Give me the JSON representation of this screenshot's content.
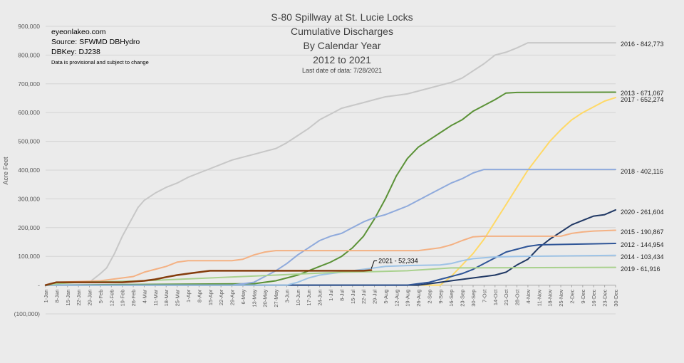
{
  "source_block": {
    "site": "eyeonlakeo.com",
    "source": "Source: SFWMD DBHydro",
    "dbkey": "DBKey: DJ238",
    "note": "Data is provisional and subject to change"
  },
  "chart_data": {
    "type": "line",
    "title": [
      "S-80 Spillway at St. Lucie Locks",
      "Cumulative Discharges",
      "By Calendar Year",
      "2012 to 2021"
    ],
    "subtitle": "Last date of data: 7/28/2021",
    "ylabel": "Acre Feet",
    "xlabel": "",
    "ylim": [
      -100000,
      900000
    ],
    "yticks": [
      {
        "v": -100000,
        "label": "(100,000)"
      },
      {
        "v": 0,
        "label": "-"
      },
      {
        "v": 100000,
        "label": "100,000"
      },
      {
        "v": 200000,
        "label": "200,000"
      },
      {
        "v": 300000,
        "label": "300,000"
      },
      {
        "v": 400000,
        "label": "400,000"
      },
      {
        "v": 500000,
        "label": "500,000"
      },
      {
        "v": 600000,
        "label": "600,000"
      },
      {
        "v": 700000,
        "label": "700,000"
      },
      {
        "v": 800000,
        "label": "800,000"
      },
      {
        "v": 900000,
        "label": "900,000"
      }
    ],
    "xlim": [
      1,
      365
    ],
    "xticks": [
      {
        "day": 1,
        "label": "1-Jan"
      },
      {
        "day": 8,
        "label": "8-Jan"
      },
      {
        "day": 15,
        "label": "15-Jan"
      },
      {
        "day": 22,
        "label": "22-Jan"
      },
      {
        "day": 29,
        "label": "29-Jan"
      },
      {
        "day": 36,
        "label": "5-Feb"
      },
      {
        "day": 43,
        "label": "12-Feb"
      },
      {
        "day": 50,
        "label": "19-Feb"
      },
      {
        "day": 57,
        "label": "26-Feb"
      },
      {
        "day": 64,
        "label": "4-Mar"
      },
      {
        "day": 71,
        "label": "11-Mar"
      },
      {
        "day": 78,
        "label": "18-Mar"
      },
      {
        "day": 85,
        "label": "25-Mar"
      },
      {
        "day": 92,
        "label": "1-Apr"
      },
      {
        "day": 99,
        "label": "8-Apr"
      },
      {
        "day": 106,
        "label": "15-Apr"
      },
      {
        "day": 113,
        "label": "22-Apr"
      },
      {
        "day": 120,
        "label": "29-Apr"
      },
      {
        "day": 127,
        "label": "6-May"
      },
      {
        "day": 134,
        "label": "13-May"
      },
      {
        "day": 141,
        "label": "20-May"
      },
      {
        "day": 148,
        "label": "27-May"
      },
      {
        "day": 155,
        "label": "3-Jun"
      },
      {
        "day": 162,
        "label": "10-Jun"
      },
      {
        "day": 169,
        "label": "17-Jun"
      },
      {
        "day": 176,
        "label": "24-Jun"
      },
      {
        "day": 183,
        "label": "1-Jul"
      },
      {
        "day": 190,
        "label": "8-Jul"
      },
      {
        "day": 197,
        "label": "15-Jul"
      },
      {
        "day": 204,
        "label": "22-Jul"
      },
      {
        "day": 211,
        "label": "29-Jul"
      },
      {
        "day": 218,
        "label": "5-Aug"
      },
      {
        "day": 225,
        "label": "12-Aug"
      },
      {
        "day": 232,
        "label": "19-Aug"
      },
      {
        "day": 239,
        "label": "26-Aug"
      },
      {
        "day": 246,
        "label": "2-Sep"
      },
      {
        "day": 253,
        "label": "9-Sep"
      },
      {
        "day": 260,
        "label": "16-Sep"
      },
      {
        "day": 267,
        "label": "23-Sep"
      },
      {
        "day": 274,
        "label": "30-Sep"
      },
      {
        "day": 281,
        "label": "7-Oct"
      },
      {
        "day": 288,
        "label": "14-Oct"
      },
      {
        "day": 295,
        "label": "21-Oct"
      },
      {
        "day": 302,
        "label": "28-Oct"
      },
      {
        "day": 309,
        "label": "4-Nov"
      },
      {
        "day": 316,
        "label": "11-Nov"
      },
      {
        "day": 323,
        "label": "18-Nov"
      },
      {
        "day": 330,
        "label": "25-Nov"
      },
      {
        "day": 337,
        "label": "2-Dec"
      },
      {
        "day": 344,
        "label": "9-Dec"
      },
      {
        "day": 351,
        "label": "16-Dec"
      },
      {
        "day": 358,
        "label": "23-Dec"
      },
      {
        "day": 365,
        "label": "30-Dec"
      }
    ],
    "grid": true,
    "legend": "none",
    "series": [
      {
        "name": "2016",
        "end_label": "2016 - 842,773",
        "color": "#c7c7c7",
        "width": 2,
        "points": [
          [
            1,
            0
          ],
          [
            8,
            10000
          ],
          [
            29,
            10000
          ],
          [
            36,
            40000
          ],
          [
            40,
            60000
          ],
          [
            45,
            110000
          ],
          [
            50,
            170000
          ],
          [
            55,
            220000
          ],
          [
            60,
            270000
          ],
          [
            64,
            295000
          ],
          [
            71,
            320000
          ],
          [
            78,
            340000
          ],
          [
            85,
            355000
          ],
          [
            92,
            375000
          ],
          [
            99,
            390000
          ],
          [
            106,
            405000
          ],
          [
            113,
            420000
          ],
          [
            120,
            435000
          ],
          [
            127,
            445000
          ],
          [
            134,
            455000
          ],
          [
            141,
            465000
          ],
          [
            148,
            475000
          ],
          [
            155,
            495000
          ],
          [
            162,
            520000
          ],
          [
            169,
            545000
          ],
          [
            176,
            575000
          ],
          [
            183,
            595000
          ],
          [
            190,
            615000
          ],
          [
            197,
            625000
          ],
          [
            204,
            635000
          ],
          [
            211,
            645000
          ],
          [
            218,
            655000
          ],
          [
            225,
            660000
          ],
          [
            232,
            665000
          ],
          [
            239,
            675000
          ],
          [
            246,
            685000
          ],
          [
            253,
            695000
          ],
          [
            260,
            705000
          ],
          [
            267,
            720000
          ],
          [
            274,
            745000
          ],
          [
            281,
            770000
          ],
          [
            288,
            800000
          ],
          [
            295,
            810000
          ],
          [
            302,
            825000
          ],
          [
            309,
            842773
          ],
          [
            365,
            842773
          ]
        ]
      },
      {
        "name": "2013",
        "end_label": "2013 - 671,067",
        "color": "#5b9237",
        "width": 2,
        "points": [
          [
            1,
            0
          ],
          [
            134,
            5000
          ],
          [
            148,
            15000
          ],
          [
            155,
            25000
          ],
          [
            162,
            35000
          ],
          [
            169,
            50000
          ],
          [
            176,
            65000
          ],
          [
            183,
            80000
          ],
          [
            190,
            100000
          ],
          [
            197,
            130000
          ],
          [
            204,
            170000
          ],
          [
            211,
            230000
          ],
          [
            218,
            300000
          ],
          [
            225,
            380000
          ],
          [
            232,
            440000
          ],
          [
            239,
            480000
          ],
          [
            246,
            505000
          ],
          [
            253,
            530000
          ],
          [
            260,
            555000
          ],
          [
            267,
            575000
          ],
          [
            274,
            605000
          ],
          [
            281,
            625000
          ],
          [
            288,
            645000
          ],
          [
            295,
            668000
          ],
          [
            302,
            670000
          ],
          [
            365,
            671067
          ]
        ]
      },
      {
        "name": "2017",
        "end_label": "2017 - 652,274",
        "color": "#ffd966",
        "width": 2,
        "points": [
          [
            1,
            0
          ],
          [
            253,
            0
          ],
          [
            260,
            30000
          ],
          [
            267,
            70000
          ],
          [
            274,
            110000
          ],
          [
            281,
            160000
          ],
          [
            288,
            220000
          ],
          [
            295,
            280000
          ],
          [
            302,
            340000
          ],
          [
            309,
            400000
          ],
          [
            316,
            450000
          ],
          [
            323,
            500000
          ],
          [
            330,
            540000
          ],
          [
            337,
            575000
          ],
          [
            344,
            600000
          ],
          [
            351,
            620000
          ],
          [
            358,
            640000
          ],
          [
            365,
            652274
          ]
        ]
      },
      {
        "name": "2018",
        "end_label": "2018 - 402,116",
        "color": "#8faadc",
        "width": 2,
        "points": [
          [
            1,
            0
          ],
          [
            120,
            0
          ],
          [
            134,
            10000
          ],
          [
            141,
            30000
          ],
          [
            148,
            50000
          ],
          [
            155,
            75000
          ],
          [
            162,
            105000
          ],
          [
            169,
            130000
          ],
          [
            176,
            155000
          ],
          [
            183,
            170000
          ],
          [
            190,
            180000
          ],
          [
            197,
            200000
          ],
          [
            204,
            220000
          ],
          [
            211,
            235000
          ],
          [
            218,
            245000
          ],
          [
            225,
            260000
          ],
          [
            232,
            275000
          ],
          [
            239,
            295000
          ],
          [
            246,
            315000
          ],
          [
            253,
            335000
          ],
          [
            260,
            355000
          ],
          [
            267,
            370000
          ],
          [
            274,
            390000
          ],
          [
            281,
            402116
          ],
          [
            365,
            402116
          ]
        ]
      },
      {
        "name": "2020",
        "end_label": "2020 - 261,604",
        "color": "#203864",
        "width": 2,
        "points": [
          [
            1,
            0
          ],
          [
            239,
            0
          ],
          [
            246,
            5000
          ],
          [
            253,
            10000
          ],
          [
            260,
            15000
          ],
          [
            267,
            20000
          ],
          [
            274,
            25000
          ],
          [
            281,
            30000
          ],
          [
            288,
            35000
          ],
          [
            295,
            45000
          ],
          [
            302,
            70000
          ],
          [
            309,
            90000
          ],
          [
            316,
            130000
          ],
          [
            323,
            160000
          ],
          [
            330,
            185000
          ],
          [
            337,
            210000
          ],
          [
            344,
            225000
          ],
          [
            351,
            240000
          ],
          [
            358,
            245000
          ],
          [
            365,
            261604
          ]
        ]
      },
      {
        "name": "2015",
        "end_label": "2015 - 190,867",
        "color": "#f4b183",
        "width": 2,
        "points": [
          [
            1,
            0
          ],
          [
            8,
            10000
          ],
          [
            36,
            15000
          ],
          [
            43,
            20000
          ],
          [
            50,
            25000
          ],
          [
            57,
            30000
          ],
          [
            64,
            45000
          ],
          [
            71,
            55000
          ],
          [
            78,
            65000
          ],
          [
            85,
            80000
          ],
          [
            92,
            85000
          ],
          [
            120,
            85000
          ],
          [
            127,
            90000
          ],
          [
            134,
            105000
          ],
          [
            141,
            115000
          ],
          [
            148,
            120000
          ],
          [
            239,
            120000
          ],
          [
            246,
            125000
          ],
          [
            253,
            130000
          ],
          [
            260,
            140000
          ],
          [
            267,
            155000
          ],
          [
            274,
            168000
          ],
          [
            281,
            170000
          ],
          [
            330,
            170000
          ],
          [
            337,
            180000
          ],
          [
            344,
            185000
          ],
          [
            351,
            188000
          ],
          [
            365,
            190867
          ]
        ]
      },
      {
        "name": "2012",
        "end_label": "2012 - 144,954",
        "color": "#2f5597",
        "width": 2,
        "points": [
          [
            1,
            0
          ],
          [
            232,
            0
          ],
          [
            239,
            5000
          ],
          [
            246,
            10000
          ],
          [
            253,
            20000
          ],
          [
            260,
            30000
          ],
          [
            267,
            40000
          ],
          [
            274,
            55000
          ],
          [
            281,
            75000
          ],
          [
            288,
            95000
          ],
          [
            295,
            115000
          ],
          [
            302,
            125000
          ],
          [
            309,
            135000
          ],
          [
            316,
            140000
          ],
          [
            365,
            144954
          ]
        ]
      },
      {
        "name": "2014",
        "end_label": "2014 - 103,434",
        "color": "#9dc3e6",
        "width": 2,
        "points": [
          [
            1,
            0
          ],
          [
            155,
            0
          ],
          [
            162,
            10000
          ],
          [
            169,
            25000
          ],
          [
            176,
            35000
          ],
          [
            183,
            40000
          ],
          [
            190,
            45000
          ],
          [
            197,
            50000
          ],
          [
            204,
            55000
          ],
          [
            211,
            60000
          ],
          [
            218,
            65000
          ],
          [
            232,
            68000
          ],
          [
            253,
            70000
          ],
          [
            260,
            75000
          ],
          [
            267,
            85000
          ],
          [
            274,
            92000
          ],
          [
            288,
            98000
          ],
          [
            302,
            100000
          ],
          [
            365,
            103434
          ]
        ]
      },
      {
        "name": "2019",
        "end_label": "2019 - 61,916",
        "color": "#a9d18e",
        "width": 2,
        "points": [
          [
            1,
            0
          ],
          [
            8,
            5000
          ],
          [
            22,
            10000
          ],
          [
            64,
            15000
          ],
          [
            85,
            20000
          ],
          [
            106,
            25000
          ],
          [
            127,
            30000
          ],
          [
            148,
            35000
          ],
          [
            169,
            40000
          ],
          [
            190,
            45000
          ],
          [
            211,
            47000
          ],
          [
            232,
            50000
          ],
          [
            246,
            55000
          ],
          [
            260,
            60000
          ],
          [
            365,
            61916
          ]
        ]
      },
      {
        "name": "2021",
        "end_label": "2021 - 52,334",
        "color": "#843c0c",
        "width": 2.5,
        "points": [
          [
            1,
            0
          ],
          [
            8,
            10000
          ],
          [
            50,
            10000
          ],
          [
            64,
            15000
          ],
          [
            71,
            20000
          ],
          [
            78,
            28000
          ],
          [
            85,
            35000
          ],
          [
            92,
            40000
          ],
          [
            99,
            45000
          ],
          [
            106,
            50000
          ],
          [
            113,
            50000
          ],
          [
            204,
            50000
          ],
          [
            209,
            52334
          ]
        ]
      }
    ],
    "annotation": {
      "label": "2021 - 52,334",
      "day": 209,
      "value": 52334
    }
  }
}
